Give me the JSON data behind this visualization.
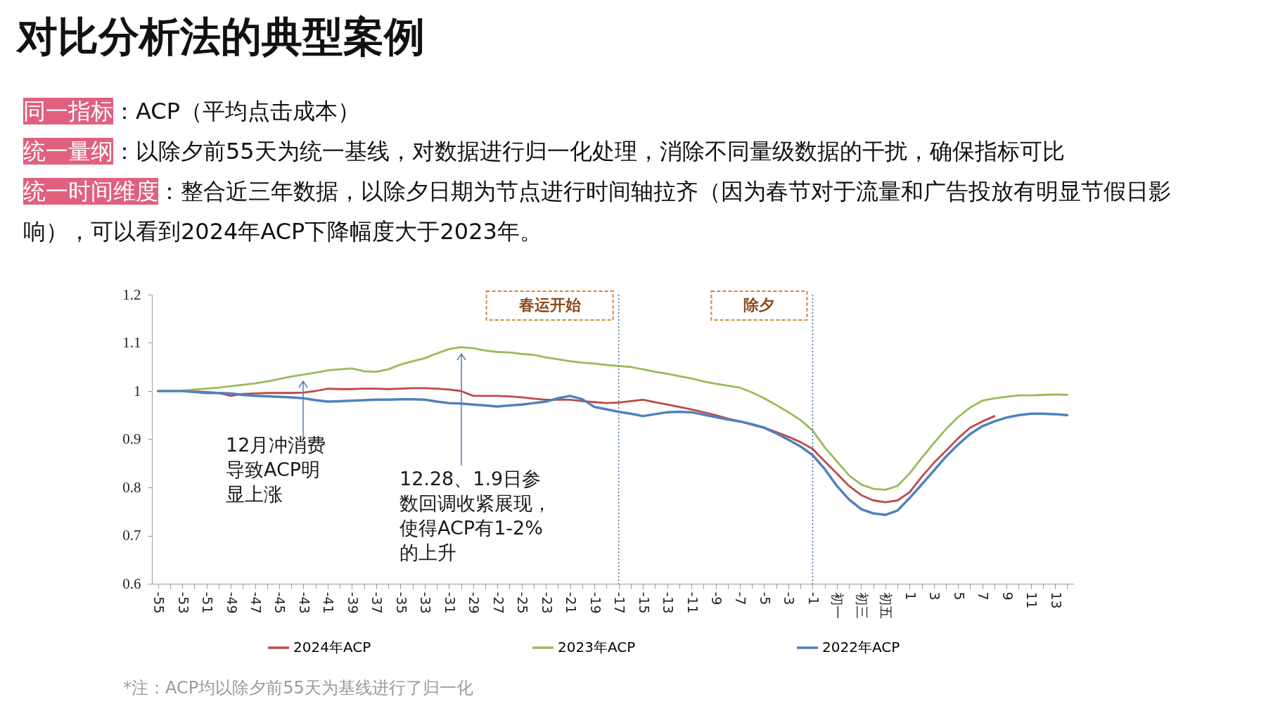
{
  "chart_data": {
    "type": "line",
    "title": "对比分析法的典型案例",
    "categories": [
      "-55",
      null,
      "-53",
      null,
      "-51",
      null,
      "-49",
      null,
      "-47",
      null,
      "-45",
      null,
      "-43",
      null,
      "-41",
      null,
      "-39",
      null,
      "-37",
      null,
      "-35",
      null,
      "-33",
      null,
      "-31",
      null,
      "-29",
      null,
      "-27",
      null,
      "-25",
      null,
      "-23",
      null,
      "-21",
      null,
      "-19",
      null,
      "-17",
      null,
      "-15",
      null,
      "-13",
      null,
      "-11",
      null,
      "-9",
      null,
      "-7",
      null,
      "-5",
      null,
      "-3",
      null,
      "-1",
      null,
      "初一",
      null,
      "初三",
      null,
      "初五",
      null,
      "1",
      null,
      "3",
      null,
      "5",
      null,
      "7",
      null,
      "9",
      null,
      "11",
      null,
      "13",
      null
    ],
    "series": [
      {
        "name": "2024年ACP",
        "color": "#be4b48",
        "values": [
          null,
          null,
          1.0,
          0.999,
          0.998,
          0.996,
          0.99,
          0.994,
          0.995,
          0.996,
          0.996,
          0.996,
          0.997,
          1.0,
          1.005,
          1.004,
          1.004,
          1.005,
          1.005,
          1.004,
          1.005,
          1.006,
          1.006,
          1.005,
          1.003,
          1.0,
          0.99,
          0.99,
          0.99,
          0.989,
          0.987,
          0.984,
          0.982,
          0.982,
          0.982,
          0.979,
          0.977,
          0.975,
          0.976,
          0.979,
          0.982,
          0.977,
          0.972,
          0.967,
          0.962,
          0.956,
          0.95,
          0.943,
          0.937,
          0.93,
          0.924,
          0.915,
          0.905,
          0.894,
          0.88,
          0.854,
          0.829,
          0.803,
          0.784,
          0.773,
          0.769,
          0.773,
          0.79,
          0.822,
          0.851,
          0.876,
          0.902,
          0.924,
          0.937,
          0.948,
          null,
          null,
          null,
          null,
          null,
          null
        ]
      },
      {
        "name": "2023年ACP",
        "color": "#9bbb59",
        "values": [
          null,
          null,
          1.001,
          1.003,
          1.005,
          1.007,
          1.01,
          1.013,
          1.016,
          1.02,
          1.025,
          1.03,
          1.034,
          1.038,
          1.043,
          1.045,
          1.047,
          1.041,
          1.04,
          1.045,
          1.055,
          1.062,
          1.068,
          1.078,
          1.087,
          1.091,
          1.089,
          1.084,
          1.081,
          1.08,
          1.077,
          1.075,
          1.07,
          1.066,
          1.062,
          1.059,
          1.057,
          1.054,
          1.052,
          1.05,
          1.045,
          1.04,
          1.036,
          1.031,
          1.026,
          1.02,
          1.015,
          1.011,
          1.007,
          0.997,
          0.985,
          0.971,
          0.956,
          0.94,
          0.918,
          0.883,
          0.854,
          0.825,
          0.806,
          0.797,
          0.795,
          0.803,
          0.829,
          0.861,
          0.892,
          0.921,
          0.946,
          0.966,
          0.98,
          0.985,
          0.988,
          0.991,
          0.991,
          0.992,
          0.993,
          0.992
        ]
      },
      {
        "name": "2022年ACP",
        "color": "#4f81bd",
        "values": [
          1.0,
          1.0,
          1.0,
          0.998,
          0.996,
          0.996,
          0.995,
          0.992,
          0.99,
          0.989,
          0.988,
          0.987,
          0.985,
          0.981,
          0.978,
          0.979,
          0.98,
          0.981,
          0.982,
          0.982,
          0.983,
          0.983,
          0.982,
          0.978,
          0.975,
          0.974,
          0.972,
          0.97,
          0.968,
          0.97,
          0.972,
          0.975,
          0.978,
          0.985,
          0.99,
          0.983,
          0.967,
          0.962,
          0.957,
          0.953,
          0.948,
          0.952,
          0.956,
          0.957,
          0.956,
          0.951,
          0.946,
          0.941,
          0.937,
          0.931,
          0.924,
          0.912,
          0.899,
          0.885,
          0.867,
          0.838,
          0.803,
          0.775,
          0.755,
          0.746,
          0.743,
          0.752,
          0.778,
          0.806,
          0.835,
          0.864,
          0.889,
          0.911,
          0.927,
          0.937,
          0.945,
          0.95,
          0.953,
          0.953,
          0.952,
          0.95
        ]
      }
    ],
    "ylim": [
      0.6,
      1.2
    ],
    "yticks": [
      0.6,
      0.7,
      0.8,
      0.9,
      1,
      1.1,
      1.2
    ],
    "legend": "bottom",
    "line_style": "solid",
    "ref_lines": [
      {
        "axis": "x",
        "value": "-17",
        "label": "春运开始",
        "color": "#4a6fa5",
        "line_style": "dotted"
      },
      {
        "axis": "x",
        "value": "-1",
        "label": "除夕",
        "color": "#4a6fa5",
        "line_style": "dotted"
      }
    ],
    "annotations": [
      "同一指标",
      "：ACP（平均点击成本）",
      "统一量纲",
      "：以除夕前55天为统一基线，对数据进行归一化处理，消除不同量级数据的干扰，确保指标可比",
      "统一时间维度",
      "：整合近三年数据，以除夕日期为节点进行时间轴拉齐（因为春节对于流量和广告投放有明显节假日影响），可以看到2024年ACP下降幅度大于2023年。",
      "12月冲消费导致ACP明显上涨",
      "12.28、1.9日参数回调收紧展现，使得ACP有1-2%的上升",
      "*注：ACP均以除夕前55天为基线进行了归一化"
    ]
  }
}
